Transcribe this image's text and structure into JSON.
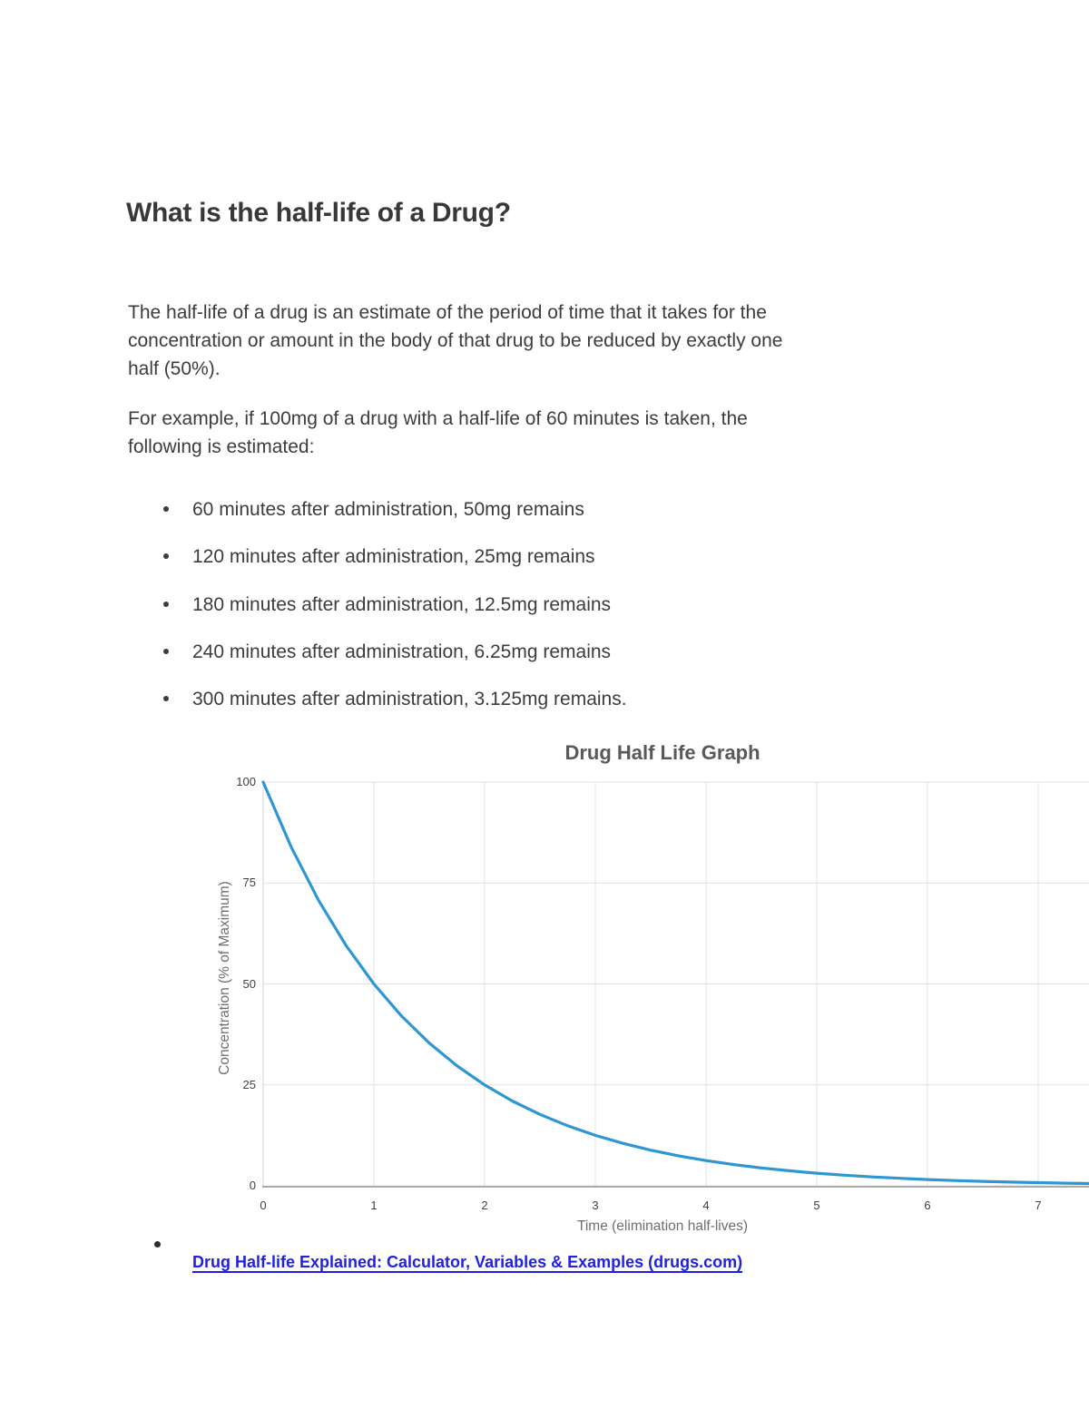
{
  "document": {
    "title": "What is the half-life of a Drug?",
    "paragraphs": [
      {
        "lines": [
          "The half-life of a drug is an estimate of the period of time that it takes for the",
          "concentration or amount in the body of that drug to be reduced by exactly one",
          "half (50%)."
        ]
      },
      {
        "lines": [
          "For example, if 100mg of a drug with a half-life of 60 minutes is taken, the",
          "following is estimated:"
        ]
      }
    ],
    "bullets": [
      "60 minutes after administration, 50mg remains",
      "120 minutes after administration, 25mg remains",
      "180 minutes after administration, 12.5mg remains",
      "240 minutes after administration, 6.25mg remains",
      "300 minutes after administration, 3.125mg remains."
    ],
    "source_link": {
      "text": "Drug Half-life Explained: Calculator, Variables & Examples (drugs.com)",
      "color": "#2121df"
    }
  },
  "chart_data": {
    "type": "line",
    "title": "Drug Half Life Graph",
    "xlabel": "Time (elimination half-lives)",
    "ylabel": "Concentration (% of Maximum)",
    "xlim": [
      0,
      7.5
    ],
    "ylim": [
      0,
      100
    ],
    "xticks": [
      0,
      1,
      2,
      3,
      4,
      5,
      6,
      7
    ],
    "yticks": [
      0,
      25,
      50,
      75,
      100
    ],
    "grid": true,
    "legend_position": "none",
    "line_color": "#2e96d2",
    "gridline_color": "#e1e1e1",
    "series": [
      {
        "name": "Concentration (% of Maximum)",
        "x": [
          0,
          0.25,
          0.5,
          0.75,
          1,
          1.25,
          1.5,
          1.75,
          2,
          2.25,
          2.5,
          2.75,
          3,
          3.25,
          3.5,
          3.75,
          4,
          4.25,
          4.5,
          4.75,
          5,
          5.25,
          5.5,
          5.75,
          6,
          6.25,
          6.5,
          6.75,
          7,
          7.25,
          7.5
        ],
        "y": [
          100,
          84.09,
          70.71,
          59.46,
          50,
          42.04,
          35.36,
          29.73,
          25,
          21.02,
          17.68,
          14.87,
          12.5,
          10.51,
          8.84,
          7.43,
          6.25,
          5.26,
          4.42,
          3.72,
          3.13,
          2.63,
          2.21,
          1.86,
          1.56,
          1.31,
          1.1,
          0.93,
          0.78,
          0.66,
          0.55
        ]
      }
    ]
  }
}
